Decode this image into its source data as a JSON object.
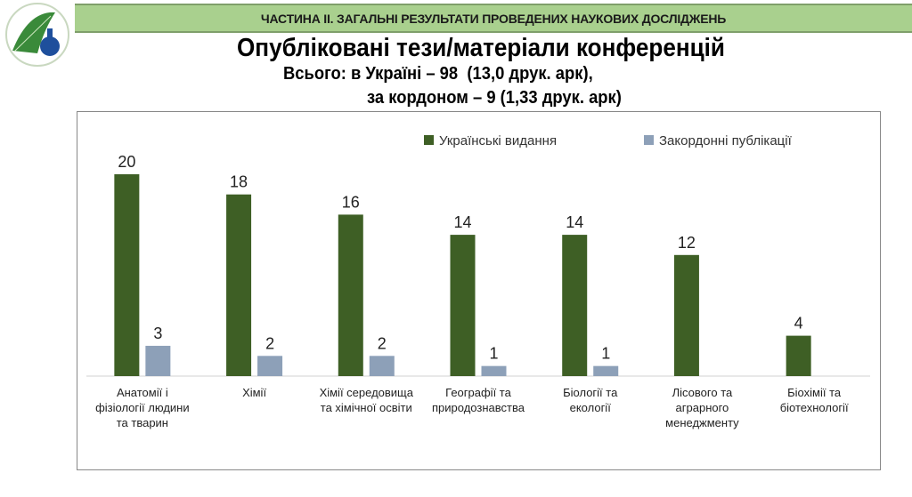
{
  "header": {
    "section_title": "ЧАСТИНА ІІ. ЗАГАЛЬНІ РЕЗУЛЬТАТИ ПРОВЕДЕНИХ НАУКОВИХ ДОСЛІДЖЕНЬ"
  },
  "slide": {
    "title": "Опубліковані тези/матеріали конференцій",
    "subtitle_line1": "Всього: в Україні – 98  (13,0 друк. арк),",
    "subtitle_line2": "за кордоном – 9 (1,33 друк. арк)"
  },
  "chart_data": {
    "type": "bar",
    "title": "",
    "categories": [
      [
        "Анатомії і",
        "фізіології людини",
        "та тварин"
      ],
      [
        "Хімії"
      ],
      [
        "Хімії середовища",
        "та хімічної освіти"
      ],
      [
        "Географії та",
        "природознавства"
      ],
      [
        "Біології та",
        "екології"
      ],
      [
        "Лісового та",
        "аграрного",
        "менеджменту"
      ],
      [
        "Біохімії та",
        "біотехнології"
      ]
    ],
    "series": [
      {
        "name": "Українські видання",
        "color": "#3e5f25",
        "values": [
          20,
          18,
          16,
          14,
          14,
          12,
          4
        ]
      },
      {
        "name": "Закордонні публікації",
        "color": "#8da0b8",
        "values": [
          3,
          2,
          2,
          1,
          1,
          null,
          null
        ]
      }
    ],
    "ylim": [
      0,
      20
    ],
    "legend": "top-right",
    "grid": false
  }
}
